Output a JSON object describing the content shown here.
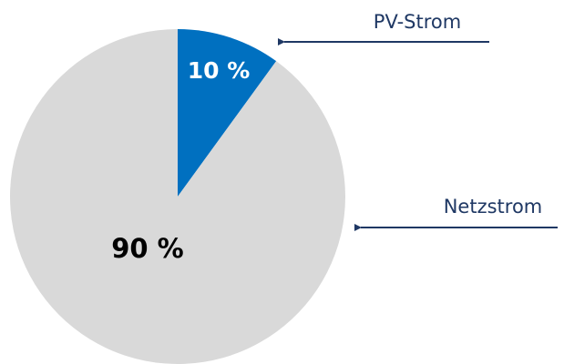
{
  "chart_data": {
    "type": "pie",
    "title": "",
    "start_angle_deg": 0,
    "direction": "clockwise",
    "slices": [
      {
        "name": "PV-Strom",
        "value": 10,
        "label": "10 %",
        "color": "#0070C0",
        "label_color": "#ffffff"
      },
      {
        "name": "Netzstrom",
        "value": 90,
        "label": "90 %",
        "color": "#D9D9D9",
        "label_color": "#000000"
      }
    ],
    "callout_color": "#1F3864"
  }
}
